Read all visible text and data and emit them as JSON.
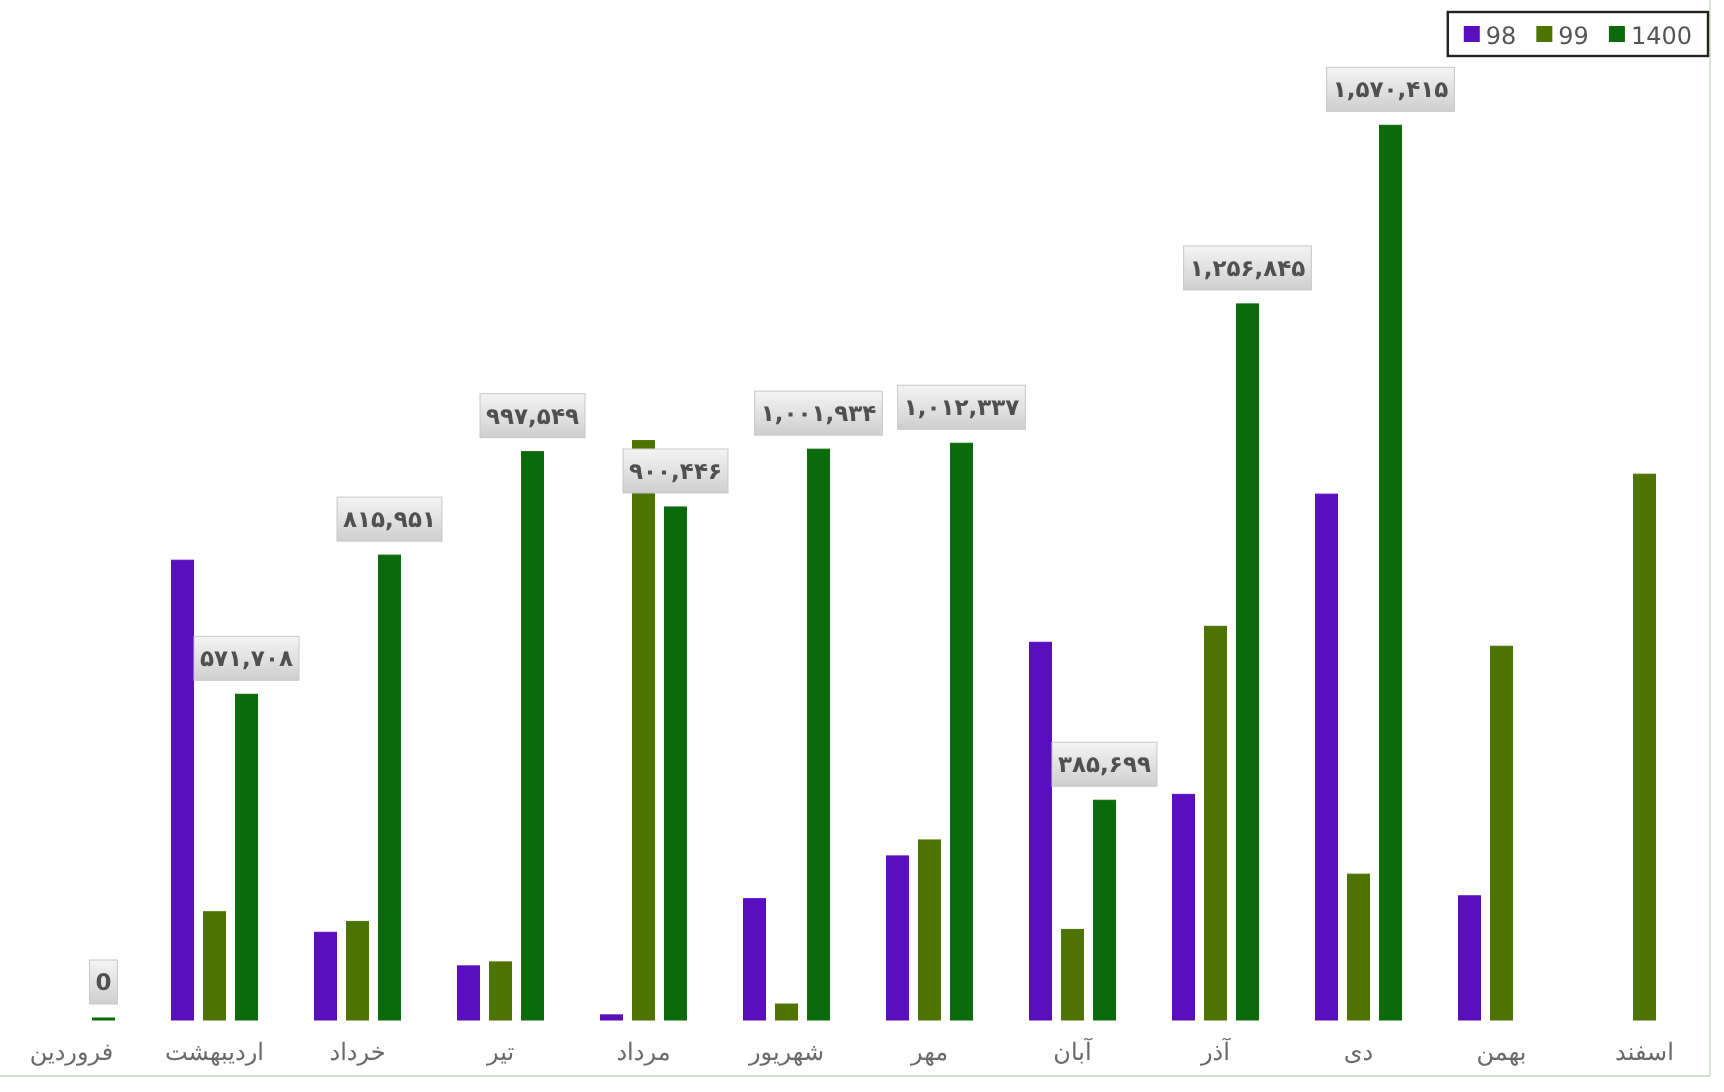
{
  "chart_data": {
    "type": "bar",
    "categories": [
      "فروردین",
      "اردیبهشت",
      "خرداد",
      "تیر",
      "مرداد",
      "شهریور",
      "مهر",
      "آبان",
      "آذر",
      "دی",
      "بهمن",
      "اسفند"
    ],
    "series": [
      {
        "name": "98",
        "color": "#5a0fbe",
        "values": [
          null,
          807000,
          154000,
          95000,
          9000,
          213000,
          288000,
          663000,
          396000,
          923000,
          218000,
          null
        ]
      },
      {
        "name": "99",
        "color": "#4e7300",
        "values": [
          null,
          190000,
          173000,
          102000,
          1017000,
          28000,
          316000,
          159000,
          691000,
          256000,
          656000,
          958000
        ]
      },
      {
        "name": "1400",
        "color": "#0b6a0b",
        "values": [
          0,
          571708,
          815951,
          997549,
          900446,
          1001934,
          1012337,
          385699,
          1256845,
          1570415,
          null,
          null
        ],
        "value_labels": [
          "0",
          "۵۷۱,۷۰۸",
          "۸۱۵,۹۵۱",
          "۹۹۷,۵۴۹",
          "۹۰۰,۴۴۶",
          "۱,۰۰۱,۹۳۴",
          "۱,۰۱۲,۳۳۷",
          "۳۸۵,۶۹۹",
          "۱,۲۵۶,۸۴۵",
          "۱,۵۷۰,۴۱۵",
          null,
          null
        ]
      }
    ],
    "legend": "top right"
  }
}
